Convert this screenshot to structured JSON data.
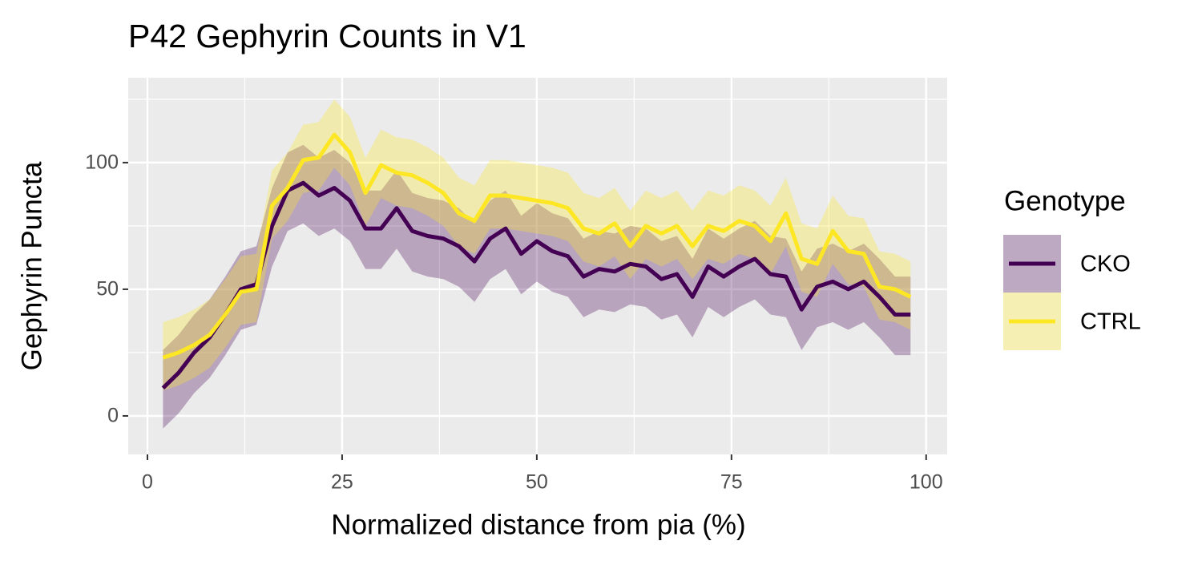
{
  "chart_data": {
    "type": "line",
    "title": "P42 Gephyrin Counts in V1",
    "x_label": "Normalized distance from pia (%)",
    "y_label": "Gephyrin Puncta",
    "legend_title": "Genotype",
    "legend_position": "right",
    "grid": true,
    "x": [
      2,
      4,
      6,
      8,
      10,
      12,
      14,
      16,
      18,
      20,
      22,
      24,
      26,
      28,
      30,
      32,
      34,
      36,
      38,
      40,
      42,
      44,
      46,
      48,
      50,
      52,
      54,
      56,
      58,
      60,
      62,
      64,
      66,
      68,
      70,
      72,
      74,
      76,
      78,
      80,
      82,
      84,
      86,
      88,
      90,
      92,
      94,
      96,
      98
    ],
    "xlim": [
      -2.47,
      102.7
    ],
    "xticks": [
      0,
      25,
      50,
      75,
      100
    ],
    "ylim": [
      -15.2,
      133.5
    ],
    "yticks": [
      0,
      50,
      100
    ],
    "series": [
      {
        "name": "CKO",
        "color": "#440154",
        "values": [
          11,
          17,
          25,
          31,
          40,
          50,
          52,
          75,
          89,
          92,
          87,
          90,
          85,
          74,
          74,
          82,
          73,
          71,
          70,
          67,
          61,
          70,
          74,
          64,
          69,
          65,
          63,
          55,
          58,
          57,
          60,
          59,
          54,
          56,
          47,
          59,
          55,
          59,
          62,
          56,
          55,
          42,
          51,
          53,
          50,
          53,
          47,
          40,
          40
        ],
        "lower": [
          -5,
          1,
          9,
          15,
          24,
          34,
          36,
          59,
          73,
          76,
          71,
          74,
          69,
          58,
          58,
          66,
          57,
          55,
          54,
          51,
          45,
          54,
          58,
          48,
          53,
          49,
          47,
          39,
          42,
          41,
          44,
          43,
          38,
          40,
          31,
          43,
          39,
          43,
          46,
          40,
          39,
          26,
          35,
          37,
          34,
          37,
          31,
          24,
          24
        ],
        "upper": [
          26,
          32,
          40,
          46,
          55,
          65,
          67,
          90,
          104,
          107,
          102,
          105,
          100,
          89,
          89,
          97,
          88,
          86,
          85,
          82,
          76,
          85,
          89,
          79,
          84,
          80,
          78,
          70,
          73,
          72,
          75,
          74,
          69,
          71,
          62,
          74,
          70,
          74,
          77,
          71,
          70,
          57,
          66,
          68,
          65,
          68,
          62,
          55,
          55
        ]
      },
      {
        "name": "CTRL",
        "color": "#FDE725",
        "values": [
          23,
          25,
          28,
          32,
          40,
          49,
          50,
          83,
          90,
          101,
          102,
          111,
          104,
          88,
          99,
          96,
          95,
          92,
          88,
          80,
          77,
          87,
          87,
          86,
          85,
          84,
          82,
          74,
          72,
          76,
          67,
          75,
          72,
          75,
          67,
          75,
          73,
          77,
          75,
          69,
          80,
          62,
          60,
          73,
          65,
          64,
          51,
          50,
          47
        ],
        "lower": [
          10,
          12,
          15,
          19,
          27,
          36,
          37,
          70,
          77,
          88,
          89,
          98,
          91,
          75,
          86,
          83,
          82,
          79,
          75,
          67,
          64,
          74,
          74,
          73,
          72,
          71,
          69,
          61,
          59,
          63,
          54,
          62,
          59,
          62,
          54,
          62,
          60,
          64,
          62,
          56,
          67,
          49,
          47,
          60,
          52,
          51,
          38,
          37,
          34
        ],
        "upper": [
          37,
          39,
          42,
          46,
          54,
          63,
          64,
          97,
          104,
          115,
          116,
          125,
          118,
          102,
          113,
          110,
          109,
          106,
          102,
          94,
          91,
          101,
          101,
          100,
          99,
          98,
          96,
          88,
          86,
          90,
          81,
          89,
          86,
          89,
          81,
          89,
          87,
          91,
          89,
          83,
          94,
          76,
          74,
          87,
          79,
          78,
          65,
          64,
          61
        ]
      }
    ]
  }
}
